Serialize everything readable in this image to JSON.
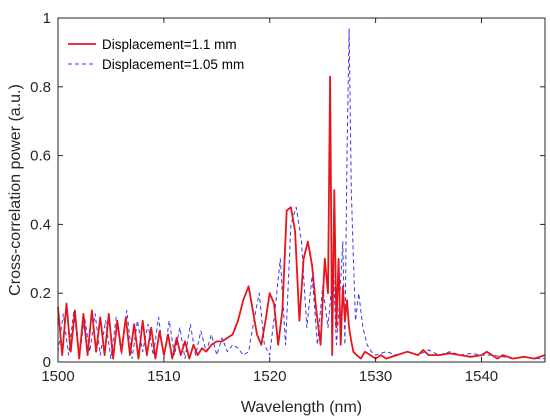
{
  "chart_data": {
    "type": "line",
    "xlabel": "Wavelength (nm)",
    "ylabel": "Cross-correlation power (a.u.)",
    "xlim": [
      1500,
      1546
    ],
    "ylim": [
      0,
      1
    ],
    "xticks": [
      1500,
      1510,
      1520,
      1530,
      1540
    ],
    "yticks": [
      0,
      0.2,
      0.4,
      0.6,
      0.8,
      1
    ],
    "ytick_labels": [
      "0",
      "0.2",
      "0.4",
      "0.6",
      "0.8",
      "1"
    ],
    "grid": false,
    "legend_position": "top-left",
    "series": [
      {
        "name": "Displacement=1.1 mm",
        "color": "#e8141c",
        "style": "solid",
        "x": [
          1500.0,
          1500.4,
          1500.8,
          1501.2,
          1501.6,
          1502.0,
          1502.4,
          1502.8,
          1503.2,
          1503.6,
          1504.0,
          1504.4,
          1504.8,
          1505.2,
          1505.6,
          1506.0,
          1506.4,
          1506.8,
          1507.2,
          1507.6,
          1508.0,
          1508.4,
          1508.8,
          1509.2,
          1509.6,
          1510.0,
          1510.4,
          1510.8,
          1511.2,
          1511.6,
          1512.0,
          1512.4,
          1512.8,
          1513.2,
          1513.6,
          1514.0,
          1514.5,
          1515.0,
          1515.5,
          1516.0,
          1516.5,
          1517.0,
          1517.5,
          1518.0,
          1518.4,
          1518.8,
          1519.2,
          1519.6,
          1520.0,
          1520.4,
          1520.8,
          1521.2,
          1521.6,
          1522.0,
          1522.4,
          1522.8,
          1523.2,
          1523.6,
          1524.0,
          1524.4,
          1524.8,
          1525.2,
          1525.5,
          1525.7,
          1525.9,
          1526.1,
          1526.3,
          1526.5,
          1526.7,
          1526.9,
          1527.1,
          1527.3,
          1527.5,
          1527.7,
          1527.9,
          1528.2,
          1528.6,
          1529.0,
          1529.5,
          1530.0,
          1530.5,
          1531.0,
          1532.0,
          1533.0,
          1534.0,
          1534.5,
          1535.0,
          1536.0,
          1537.0,
          1538.0,
          1539.0,
          1540.0,
          1540.5,
          1541.0,
          1541.5,
          1542.0,
          1543.0,
          1544.0,
          1545.0,
          1546.0
        ],
        "y": [
          0.16,
          0.02,
          0.17,
          0.03,
          0.15,
          0.01,
          0.14,
          0.02,
          0.15,
          0.03,
          0.13,
          0.02,
          0.14,
          0.01,
          0.12,
          0.03,
          0.13,
          0.02,
          0.11,
          0.01,
          0.12,
          0.02,
          0.1,
          0.01,
          0.09,
          0.02,
          0.08,
          0.01,
          0.07,
          0.02,
          0.06,
          0.01,
          0.05,
          0.02,
          0.04,
          0.03,
          0.05,
          0.06,
          0.06,
          0.07,
          0.08,
          0.12,
          0.18,
          0.22,
          0.15,
          0.08,
          0.05,
          0.12,
          0.2,
          0.17,
          0.05,
          0.15,
          0.44,
          0.45,
          0.38,
          0.12,
          0.3,
          0.35,
          0.28,
          0.15,
          0.05,
          0.3,
          0.2,
          0.83,
          0.02,
          0.5,
          0.1,
          0.3,
          0.05,
          0.22,
          0.12,
          0.18,
          0.1,
          0.06,
          0.03,
          0.02,
          0.01,
          0.03,
          0.02,
          0.01,
          0.02,
          0.01,
          0.02,
          0.03,
          0.02,
          0.035,
          0.02,
          0.02,
          0.025,
          0.02,
          0.015,
          0.02,
          0.03,
          0.02,
          0.01,
          0.02,
          0.01,
          0.015,
          0.01,
          0.02
        ]
      },
      {
        "name": "Displacement=1.05 mm",
        "color": "#3a3ae8",
        "style": "dashed",
        "x": [
          1500.0,
          1500.5,
          1501.0,
          1501.5,
          1502.0,
          1502.5,
          1503.0,
          1503.5,
          1504.0,
          1504.5,
          1505.0,
          1505.5,
          1506.0,
          1506.5,
          1507.0,
          1507.5,
          1508.0,
          1508.5,
          1509.0,
          1509.5,
          1510.0,
          1510.5,
          1511.0,
          1511.5,
          1512.0,
          1512.5,
          1513.0,
          1513.5,
          1514.0,
          1514.5,
          1515.0,
          1515.5,
          1516.0,
          1516.5,
          1517.0,
          1517.5,
          1518.0,
          1518.5,
          1519.0,
          1519.5,
          1520.0,
          1520.5,
          1521.0,
          1521.5,
          1522.0,
          1522.5,
          1523.0,
          1523.5,
          1524.0,
          1524.5,
          1525.0,
          1525.5,
          1526.0,
          1526.3,
          1526.6,
          1526.9,
          1527.1,
          1527.3,
          1527.5,
          1527.7,
          1527.9,
          1528.1,
          1528.4,
          1528.8,
          1529.2,
          1529.6,
          1530.0,
          1531.0,
          1532.0,
          1533.0,
          1534.0,
          1535.0,
          1536.0,
          1537.0,
          1538.0,
          1539.0,
          1540.0,
          1541.0,
          1542.0,
          1543.0,
          1544.0,
          1545.0,
          1546.0
        ],
        "y": [
          0.03,
          0.14,
          0.02,
          0.15,
          0.01,
          0.13,
          0.03,
          0.14,
          0.02,
          0.12,
          0.01,
          0.13,
          0.02,
          0.15,
          0.01,
          0.12,
          0.03,
          0.11,
          0.02,
          0.13,
          0.01,
          0.12,
          0.02,
          0.1,
          0.01,
          0.11,
          0.02,
          0.09,
          0.03,
          0.08,
          0.02,
          0.07,
          0.03,
          0.05,
          0.04,
          0.02,
          0.03,
          0.12,
          0.2,
          0.05,
          0.02,
          0.15,
          0.3,
          0.05,
          0.4,
          0.45,
          0.35,
          0.1,
          0.25,
          0.05,
          0.22,
          0.1,
          0.28,
          0.05,
          0.18,
          0.35,
          0.05,
          0.6,
          0.97,
          0.5,
          0.3,
          0.12,
          0.2,
          0.1,
          0.05,
          0.03,
          0.02,
          0.03,
          0.02,
          0.03,
          0.02,
          0.035,
          0.02,
          0.03,
          0.02,
          0.025,
          0.02,
          0.02,
          0.015,
          0.01,
          0.015,
          0.01,
          0.01
        ]
      }
    ]
  }
}
